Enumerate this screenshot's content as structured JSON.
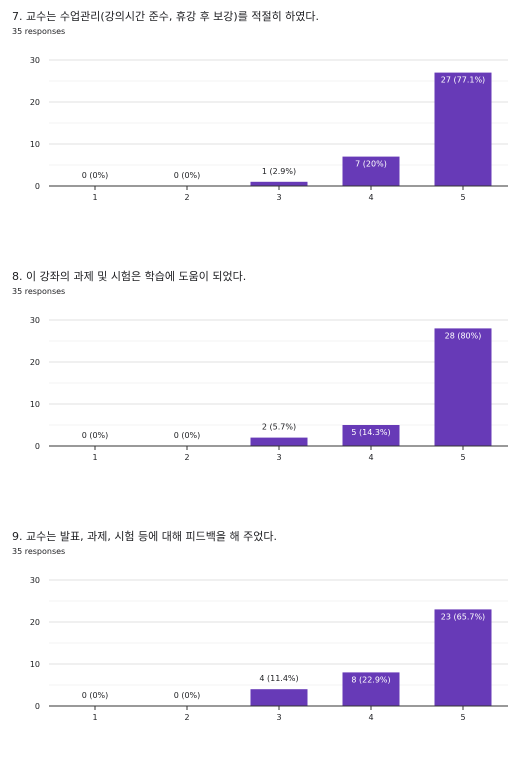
{
  "colors": {
    "bar": "#673ab7",
    "grid": "#e0e0e0",
    "axis": "#333333",
    "label_outside": "#202124",
    "label_inside": "#ffffff"
  },
  "questions": [
    {
      "title": "7. 교수는 수업관리(강의시간 준수, 휴강 후 보강)를 적절히 하였다.",
      "responses": "35 responses"
    },
    {
      "title": "8. 이 강좌의 과제 및 시험은 학습에 도움이 되었다.",
      "responses": "35 responses"
    },
    {
      "title": "9. 교수는 발표, 과제, 시험 등에 대해 피드백을 해 주었다.",
      "responses": "35 responses"
    }
  ],
  "chart_data": [
    {
      "type": "bar",
      "categories": [
        "1",
        "2",
        "3",
        "4",
        "5"
      ],
      "values": [
        0,
        0,
        1,
        7,
        27
      ],
      "data_labels": [
        "0 (0%)",
        "0 (0%)",
        "1 (2.9%)",
        "7 (20%)",
        "27 (77.1%)"
      ],
      "y_ticks": [
        "0",
        "10",
        "20",
        "30"
      ],
      "ylim": [
        0,
        30
      ],
      "grid": true
    },
    {
      "type": "bar",
      "categories": [
        "1",
        "2",
        "3",
        "4",
        "5"
      ],
      "values": [
        0,
        0,
        2,
        5,
        28
      ],
      "data_labels": [
        "0 (0%)",
        "0 (0%)",
        "2 (5.7%)",
        "5 (14.3%)",
        "28 (80%)"
      ],
      "y_ticks": [
        "0",
        "10",
        "20",
        "30"
      ],
      "ylim": [
        0,
        30
      ],
      "grid": true
    },
    {
      "type": "bar",
      "categories": [
        "1",
        "2",
        "3",
        "4",
        "5"
      ],
      "values": [
        0,
        0,
        4,
        8,
        23
      ],
      "data_labels": [
        "0 (0%)",
        "0 (0%)",
        "4 (11.4%)",
        "8 (22.9%)",
        "23 (65.7%)"
      ],
      "y_ticks": [
        "0",
        "10",
        "20",
        "30"
      ],
      "ylim": [
        0,
        30
      ],
      "grid": true
    }
  ]
}
